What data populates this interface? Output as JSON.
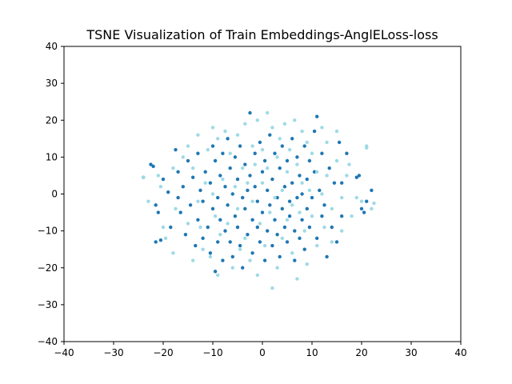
{
  "chart_data": {
    "type": "scatter",
    "title": "TSNE Visualization of Train Embeddings-AnglELoss-loss",
    "xlabel": "",
    "ylabel": "",
    "xlim": [
      -40,
      40
    ],
    "ylim": [
      -40,
      40
    ],
    "xticks": [
      -40,
      -30,
      -20,
      -10,
      0,
      10,
      20,
      30,
      40
    ],
    "yticks": [
      -40,
      -30,
      -20,
      -10,
      0,
      10,
      20,
      30,
      40
    ],
    "grid": false,
    "legend": "none",
    "series": [
      {
        "color": "#1f77b4",
        "points": [
          [
            -24,
            4.5
          ],
          [
            -22.5,
            8
          ],
          [
            -22,
            7.5
          ],
          [
            -21.5,
            -3
          ],
          [
            -21,
            -5
          ],
          [
            -21.5,
            -13
          ],
          [
            -20.5,
            -12.5
          ],
          [
            -20,
            4
          ],
          [
            -19,
            0.5
          ],
          [
            -18.5,
            -9
          ],
          [
            -17.5,
            12
          ],
          [
            -17,
            6
          ],
          [
            -17,
            -1
          ],
          [
            -16.5,
            -5
          ],
          [
            -16,
            2
          ],
          [
            -15.5,
            -11
          ],
          [
            -15,
            9
          ],
          [
            -14.5,
            -3
          ],
          [
            -14,
            4.5
          ],
          [
            -13.5,
            -14
          ],
          [
            -13,
            11
          ],
          [
            -13,
            -7
          ],
          [
            -12.5,
            1
          ],
          [
            -12,
            -2
          ],
          [
            -12,
            -12
          ],
          [
            -11.5,
            6
          ],
          [
            -11,
            -9
          ],
          [
            -10.5,
            3
          ],
          [
            -10.5,
            -16
          ],
          [
            -10,
            13
          ],
          [
            -10,
            -4
          ],
          [
            -9.5,
            9
          ],
          [
            -9.5,
            -21
          ],
          [
            -9,
            -1
          ],
          [
            -9,
            -13
          ],
          [
            -8.5,
            5
          ],
          [
            -8.5,
            -7
          ],
          [
            -8,
            11
          ],
          [
            -8,
            -18
          ],
          [
            -7.5,
            2
          ],
          [
            -7.5,
            -10
          ],
          [
            -7,
            15
          ],
          [
            -7,
            -3
          ],
          [
            -6.5,
            7
          ],
          [
            -6.5,
            -13
          ],
          [
            -6,
            0
          ],
          [
            -6,
            -17
          ],
          [
            -5.5,
            10
          ],
          [
            -5.5,
            -6
          ],
          [
            -5,
            4
          ],
          [
            -5,
            -9
          ],
          [
            -4.5,
            -14
          ],
          [
            -4.5,
            13
          ],
          [
            -4,
            -1
          ],
          [
            -4,
            -20
          ],
          [
            -3.5,
            8
          ],
          [
            -3.5,
            -4
          ],
          [
            -3,
            1
          ],
          [
            -3,
            -11
          ],
          [
            -2.5,
            22
          ],
          [
            -2.5,
            5
          ],
          [
            -2,
            -7
          ],
          [
            -2,
            -16
          ],
          [
            -1.5,
            11
          ],
          [
            -1.5,
            2
          ],
          [
            -1,
            -2
          ],
          [
            -1,
            -9
          ],
          [
            -0.5,
            14
          ],
          [
            -0.5,
            -13
          ],
          [
            0,
            6
          ],
          [
            0,
            -5
          ],
          [
            0.5,
            9
          ],
          [
            0.5,
            -18
          ],
          [
            1,
            1
          ],
          [
            1,
            -10
          ],
          [
            1.5,
            16
          ],
          [
            1.5,
            -3
          ],
          [
            2,
            4
          ],
          [
            2,
            -14
          ],
          [
            2.5,
            11
          ],
          [
            2.5,
            -7
          ],
          [
            3,
            -1
          ],
          [
            3,
            -11
          ],
          [
            3.5,
            7
          ],
          [
            3.5,
            -17
          ],
          [
            4,
            13
          ],
          [
            4,
            -4
          ],
          [
            4.5,
            2
          ],
          [
            4.5,
            -9
          ],
          [
            5,
            9
          ],
          [
            5,
            -13
          ],
          [
            5.5,
            -2
          ],
          [
            5.5,
            -6
          ],
          [
            6,
            15
          ],
          [
            6,
            3
          ],
          [
            6.5,
            -10
          ],
          [
            6.5,
            -18
          ],
          [
            7,
            10
          ],
          [
            7,
            -1
          ],
          [
            7.5,
            5
          ],
          [
            7.5,
            -12
          ],
          [
            8,
            0
          ],
          [
            8,
            -7
          ],
          [
            8.5,
            13
          ],
          [
            8.5,
            -15
          ],
          [
            9,
            4
          ],
          [
            9,
            -4
          ],
          [
            9.5,
            9
          ],
          [
            9.5,
            -9
          ],
          [
            10,
            -1
          ],
          [
            10.5,
            17
          ],
          [
            10.5,
            6
          ],
          [
            11,
            -12
          ],
          [
            11,
            21
          ],
          [
            11.5,
            1
          ],
          [
            12,
            -6
          ],
          [
            12,
            11
          ],
          [
            12.5,
            -3
          ],
          [
            13,
            -17
          ],
          [
            13.5,
            7
          ],
          [
            14,
            -9
          ],
          [
            14.5,
            3
          ],
          [
            15,
            -13
          ],
          [
            15.5,
            14
          ],
          [
            16,
            3
          ],
          [
            16,
            -6
          ],
          [
            17,
            11
          ],
          [
            19,
            4.5
          ],
          [
            19.5,
            5
          ],
          [
            20,
            -4
          ],
          [
            20.5,
            -5
          ],
          [
            21,
            -2
          ],
          [
            22,
            1
          ]
        ]
      },
      {
        "color": "#9edae5",
        "points": [
          [
            -24,
            4.5
          ],
          [
            -23,
            -2
          ],
          [
            -21,
            5
          ],
          [
            -20.5,
            2
          ],
          [
            -20,
            -9
          ],
          [
            -19.5,
            -12
          ],
          [
            -18,
            7
          ],
          [
            -18,
            -16
          ],
          [
            -17.5,
            -4
          ],
          [
            -16,
            10
          ],
          [
            -15,
            13
          ],
          [
            -15,
            -8
          ],
          [
            -14,
            7
          ],
          [
            -14,
            -18
          ],
          [
            -13,
            16
          ],
          [
            -13,
            -2
          ],
          [
            -12.5,
            -9
          ],
          [
            -12,
            -15
          ],
          [
            -11.5,
            3
          ],
          [
            -11,
            12
          ],
          [
            -10.5,
            -17
          ],
          [
            -10,
            18
          ],
          [
            -10,
            0
          ],
          [
            -9.5,
            -6
          ],
          [
            -9,
            15
          ],
          [
            -9,
            -22
          ],
          [
            -8.5,
            -11
          ],
          [
            -8,
            4
          ],
          [
            -7.5,
            17
          ],
          [
            -7,
            -8
          ],
          [
            -6.5,
            11
          ],
          [
            -6,
            -20
          ],
          [
            -5.5,
            2
          ],
          [
            -5,
            16
          ],
          [
            -5,
            -4
          ],
          [
            -4.5,
            -15
          ],
          [
            -4,
            7
          ],
          [
            -3.5,
            19
          ],
          [
            -3.5,
            -12
          ],
          [
            -3,
            3
          ],
          [
            -2.5,
            -18
          ],
          [
            -2,
            13
          ],
          [
            -2,
            -2
          ],
          [
            -1.5,
            8
          ],
          [
            -1,
            20
          ],
          [
            -1,
            -22
          ],
          [
            -0.5,
            -8
          ],
          [
            0,
            3
          ],
          [
            0,
            12
          ],
          [
            0.5,
            -14
          ],
          [
            1,
            22
          ],
          [
            1,
            7
          ],
          [
            1.5,
            -5
          ],
          [
            2,
            -25.5
          ],
          [
            2,
            18
          ],
          [
            2.5,
            -1
          ],
          [
            3,
            10
          ],
          [
            3,
            -20
          ],
          [
            3.5,
            15
          ],
          [
            4,
            1
          ],
          [
            4,
            -12
          ],
          [
            4.5,
            19
          ],
          [
            5,
            6
          ],
          [
            5,
            -7
          ],
          [
            5.5,
            12
          ],
          [
            6,
            -16
          ],
          [
            6,
            -3
          ],
          [
            6.5,
            20
          ],
          [
            7,
            8
          ],
          [
            7,
            -23
          ],
          [
            7.5,
            -5
          ],
          [
            8,
            17
          ],
          [
            8,
            3
          ],
          [
            8.5,
            -10
          ],
          [
            9,
            14
          ],
          [
            9,
            -19
          ],
          [
            9.5,
            1
          ],
          [
            10,
            11
          ],
          [
            10,
            -6
          ],
          [
            11,
            6
          ],
          [
            11,
            -14
          ],
          [
            12,
            18
          ],
          [
            12,
            0
          ],
          [
            12.5,
            -9
          ],
          [
            13,
            14
          ],
          [
            13,
            5
          ],
          [
            14,
            -4
          ],
          [
            14,
            -13
          ],
          [
            15,
            17
          ],
          [
            15,
            9
          ],
          [
            16,
            -1
          ],
          [
            16,
            -10
          ],
          [
            17,
            5
          ],
          [
            17.5,
            8
          ],
          [
            18,
            -6
          ],
          [
            19,
            -1
          ],
          [
            20,
            -2
          ],
          [
            21,
            12.5
          ],
          [
            21,
            13
          ],
          [
            22,
            -4
          ],
          [
            22.5,
            -2.5
          ]
        ]
      }
    ]
  }
}
